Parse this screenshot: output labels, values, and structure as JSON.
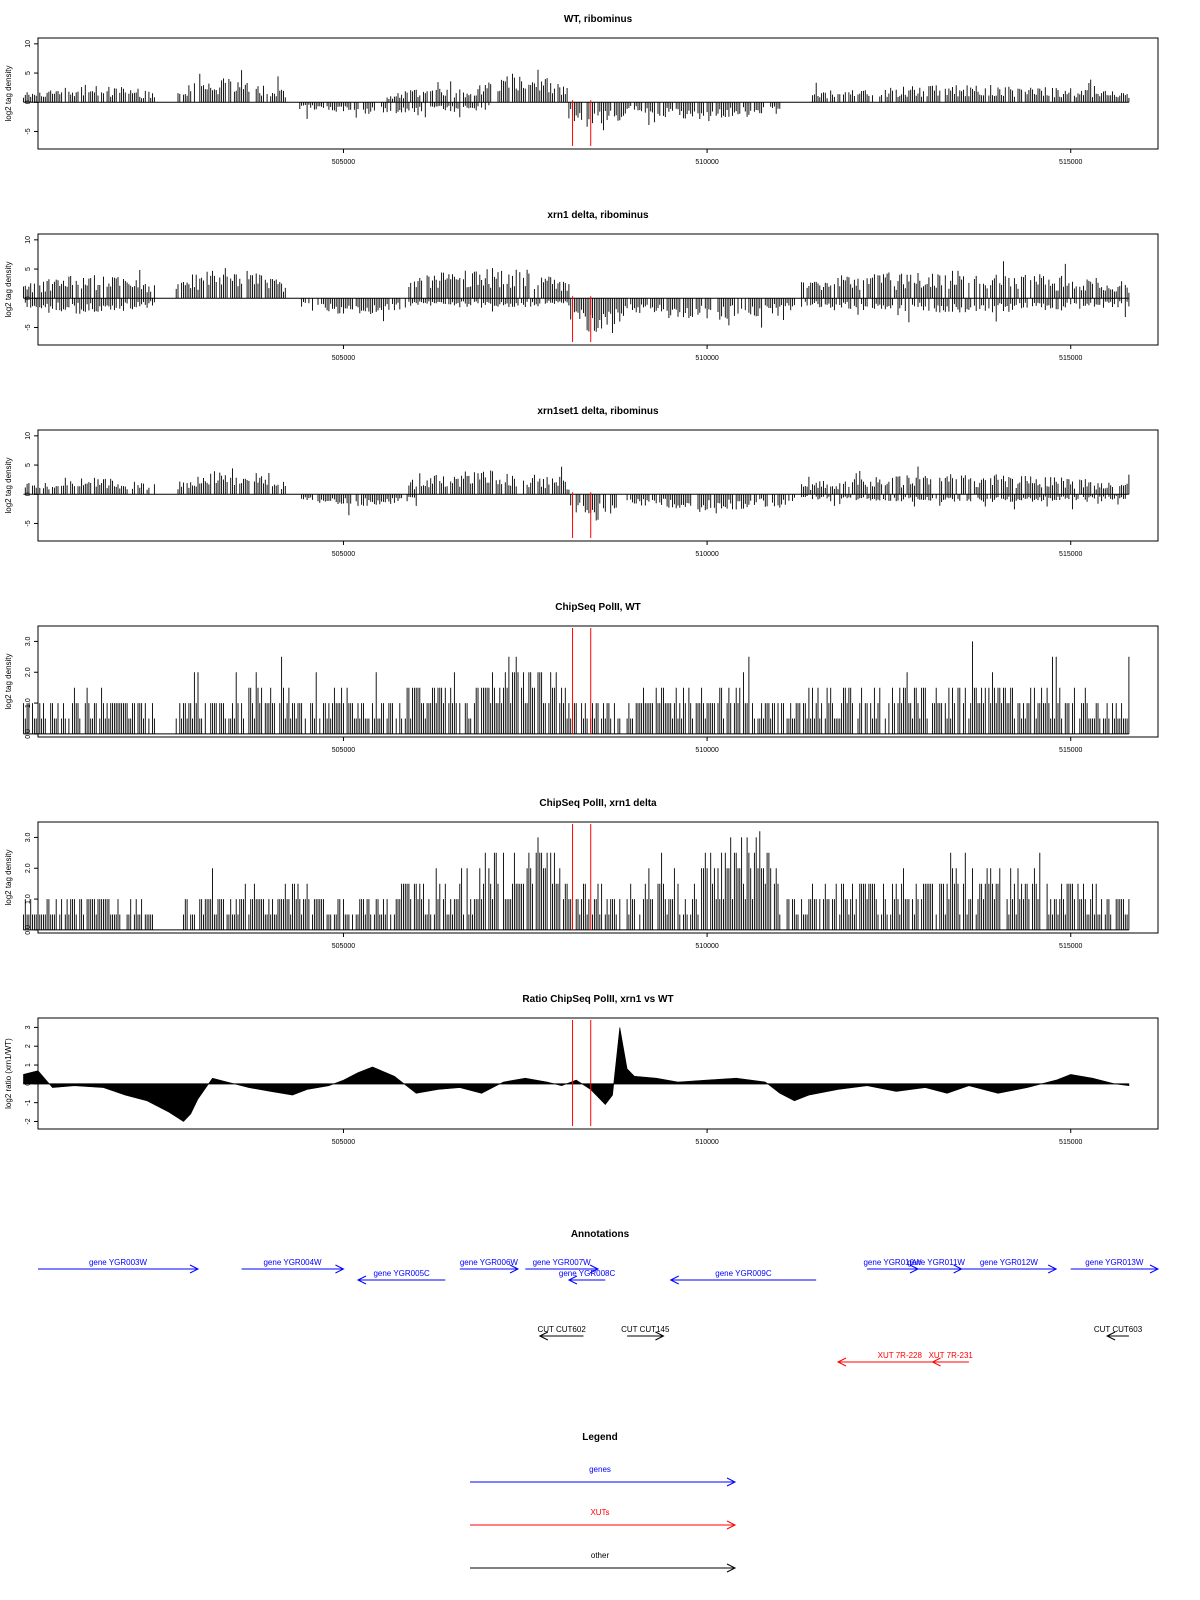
{
  "chart_data": [
    {
      "type": "bar",
      "title": "WT, ribominus",
      "xlabel": "",
      "ylabel": "log2 tag density",
      "xlim": [
        500800,
        516200
      ],
      "ylim": [
        -8,
        11
      ],
      "yticks": [
        -5,
        0,
        5,
        10
      ],
      "xticks": [
        505000,
        510000,
        515000
      ],
      "markers_x": [
        508150,
        508400
      ],
      "marker_color": "#ff0000",
      "x_range": [
        500600,
        515800
      ],
      "segments": [
        {
          "x": [
            500600,
            502400
          ],
          "dir": 1,
          "base": 2.2,
          "amp": 2.3
        },
        {
          "x": [
            502700,
            504200
          ],
          "dir": 1,
          "base": 3.0,
          "amp": 3.0
        },
        {
          "x": [
            504400,
            507000
          ],
          "dir": -1,
          "base": 1.5,
          "amp": 2.0
        },
        {
          "x": [
            505600,
            507000
          ],
          "dir": 1,
          "base": 1.8,
          "amp": 2.0
        },
        {
          "x": [
            506800,
            508100
          ],
          "dir": 1,
          "base": 3.5,
          "amp": 4.0
        },
        {
          "x": [
            508100,
            508900
          ],
          "dir": -1,
          "base": 3.5,
          "amp": 3.0
        },
        {
          "x": [
            508900,
            511000
          ],
          "dir": -1,
          "base": 2.2,
          "amp": 2.5
        },
        {
          "x": [
            511400,
            515800
          ],
          "dir": 1,
          "base": 2.2,
          "amp": 2.5
        }
      ]
    },
    {
      "type": "bar",
      "title": "xrn1 delta, ribominus",
      "xlabel": "",
      "ylabel": "log2 tag density",
      "xlim": [
        500800,
        516200
      ],
      "ylim": [
        -8,
        11
      ],
      "yticks": [
        -5,
        0,
        5,
        10
      ],
      "xticks": [
        505000,
        510000,
        515000
      ],
      "markers_x": [
        508150,
        508400
      ],
      "marker_color": "#ff0000",
      "x_range": [
        500600,
        515800
      ],
      "segments": [
        {
          "x": [
            500600,
            502400
          ],
          "dir": 1,
          "base": 3.0,
          "amp": 3.0
        },
        {
          "x": [
            500600,
            502400
          ],
          "dir": -1,
          "base": 1.8,
          "amp": 2.0
        },
        {
          "x": [
            502700,
            504200
          ],
          "dir": 1,
          "base": 3.8,
          "amp": 3.5
        },
        {
          "x": [
            504400,
            505900
          ],
          "dir": -1,
          "base": 2.2,
          "amp": 2.5
        },
        {
          "x": [
            505900,
            508100
          ],
          "dir": 1,
          "base": 4.0,
          "amp": 4.5
        },
        {
          "x": [
            505900,
            508100
          ],
          "dir": -1,
          "base": 1.2,
          "amp": 1.5
        },
        {
          "x": [
            508100,
            508900
          ],
          "dir": -1,
          "base": 4.5,
          "amp": 3.0
        },
        {
          "x": [
            508900,
            511200
          ],
          "dir": -1,
          "base": 2.8,
          "amp": 2.5
        },
        {
          "x": [
            511300,
            515800
          ],
          "dir": 1,
          "base": 3.5,
          "amp": 3.0
        },
        {
          "x": [
            511300,
            515800
          ],
          "dir": -1,
          "base": 1.8,
          "amp": 2.5
        }
      ]
    },
    {
      "type": "bar",
      "title": "xrn1set1 delta, ribominus",
      "xlabel": "",
      "ylabel": "log2 tag density",
      "xlim": [
        500800,
        516200
      ],
      "ylim": [
        -8,
        11
      ],
      "yticks": [
        -5,
        0,
        5,
        10
      ],
      "xticks": [
        505000,
        510000,
        515000
      ],
      "markers_x": [
        508150,
        508400
      ],
      "marker_color": "#ff0000",
      "x_range": [
        500600,
        515800
      ],
      "segments": [
        {
          "x": [
            500600,
            502400
          ],
          "dir": 1,
          "base": 2.2,
          "amp": 2.5
        },
        {
          "x": [
            502700,
            504200
          ],
          "dir": 1,
          "base": 3.0,
          "amp": 3.0
        },
        {
          "x": [
            504400,
            506000
          ],
          "dir": -1,
          "base": 1.5,
          "amp": 2.0
        },
        {
          "x": [
            505900,
            508100
          ],
          "dir": 1,
          "base": 3.0,
          "amp": 3.0
        },
        {
          "x": [
            508100,
            508800
          ],
          "dir": -1,
          "base": 3.2,
          "amp": 2.5
        },
        {
          "x": [
            508900,
            511200
          ],
          "dir": -1,
          "base": 2.0,
          "amp": 2.5
        },
        {
          "x": [
            511300,
            515800
          ],
          "dir": 1,
          "base": 2.5,
          "amp": 3.0
        },
        {
          "x": [
            511300,
            515800
          ],
          "dir": -1,
          "base": 1.0,
          "amp": 1.8
        }
      ]
    },
    {
      "type": "bar",
      "title": "ChipSeq PolII, WT",
      "xlabel": "",
      "ylabel": "log2 tag density",
      "xlim": [
        500800,
        516200
      ],
      "ylim": [
        -0.1,
        3.5
      ],
      "yticks": [
        0.0,
        1.0,
        2.0,
        3.0
      ],
      "ytick_labels": [
        "0.0",
        "1.0",
        "2.0",
        "3.0"
      ],
      "xticks": [
        505000,
        510000,
        515000
      ],
      "markers_x": [
        508150,
        508400
      ],
      "marker_color": "#ff0000",
      "x_range": [
        500600,
        515800
      ],
      "segments": [
        {
          "x": [
            500600,
            502400
          ],
          "dir": 1,
          "base": 1.0,
          "amp": 1.3
        },
        {
          "x": [
            502700,
            505600
          ],
          "dir": 1,
          "base": 1.1,
          "amp": 1.5
        },
        {
          "x": [
            505600,
            506800
          ],
          "dir": 1,
          "base": 1.2,
          "amp": 1.3
        },
        {
          "x": [
            506800,
            508100
          ],
          "dir": 1,
          "base": 2.0,
          "amp": 1.4
        },
        {
          "x": [
            508100,
            508800
          ],
          "dir": 1,
          "base": 1.0,
          "amp": 1.0
        },
        {
          "x": [
            508900,
            510800
          ],
          "dir": 1,
          "base": 1.3,
          "amp": 1.5
        },
        {
          "x": [
            510800,
            515800
          ],
          "dir": 1,
          "base": 1.3,
          "amp": 1.7
        }
      ]
    },
    {
      "type": "bar",
      "title": "ChipSeq PolII, xrn1 delta",
      "xlabel": "",
      "ylabel": "log2 tag density",
      "xlim": [
        500800,
        516200
      ],
      "ylim": [
        -0.1,
        3.5
      ],
      "yticks": [
        0.0,
        1.0,
        2.0,
        3.0
      ],
      "ytick_labels": [
        "0.0",
        "1.0",
        "2.0",
        "3.0"
      ],
      "xticks": [
        505000,
        510000,
        515000
      ],
      "markers_x": [
        508150,
        508400
      ],
      "marker_color": "#ff0000",
      "x_range": [
        500600,
        515800
      ],
      "segments": [
        {
          "x": [
            500600,
            502400
          ],
          "dir": 1,
          "base": 0.9,
          "amp": 1.1
        },
        {
          "x": [
            502800,
            505500
          ],
          "dir": 1,
          "base": 1.0,
          "amp": 1.2
        },
        {
          "x": [
            505500,
            506800
          ],
          "dir": 1,
          "base": 1.3,
          "amp": 1.3
        },
        {
          "x": [
            506800,
            508100
          ],
          "dir": 1,
          "base": 2.3,
          "amp": 0.9
        },
        {
          "x": [
            508100,
            508800
          ],
          "dir": 1,
          "base": 1.1,
          "amp": 0.8
        },
        {
          "x": [
            508900,
            509800
          ],
          "dir": 1,
          "base": 1.5,
          "amp": 1.0
        },
        {
          "x": [
            509800,
            511000
          ],
          "dir": 1,
          "base": 2.3,
          "amp": 1.0
        },
        {
          "x": [
            511100,
            515800
          ],
          "dir": 1,
          "base": 1.5,
          "amp": 1.4
        }
      ]
    },
    {
      "type": "area",
      "title": "Ratio ChipSeq PolII, xrn1 vs WT",
      "xlabel": "",
      "ylabel": "log2 ratio (xrn1/WT)",
      "xlim": [
        500800,
        516200
      ],
      "ylim": [
        -2.4,
        3.5
      ],
      "yticks": [
        -2,
        -1,
        0,
        1,
        2,
        3
      ],
      "xticks": [
        505000,
        510000,
        515000
      ],
      "markers_x": [
        508150,
        508400
      ],
      "marker_color": "#ff0000",
      "x": [
        500600,
        500800,
        501000,
        501300,
        501700,
        502000,
        502300,
        502600,
        502800,
        502900,
        503000,
        503200,
        503400,
        503700,
        504000,
        504300,
        504500,
        504800,
        505000,
        505200,
        505400,
        505700,
        506000,
        506300,
        506600,
        506900,
        507200,
        507500,
        507800,
        508000,
        508200,
        508400,
        508600,
        508700,
        508800,
        508900,
        509000,
        509300,
        509600,
        510000,
        510400,
        510800,
        511000,
        511200,
        511400,
        511800,
        512200,
        512600,
        513000,
        513300,
        513600,
        514000,
        514400,
        514800,
        515000,
        515300,
        515600,
        515800
      ],
      "y": [
        0.5,
        0.7,
        -0.2,
        -0.1,
        -0.2,
        -0.6,
        -0.9,
        -1.5,
        -2.0,
        -1.6,
        -0.8,
        0.3,
        0.1,
        -0.2,
        -0.4,
        -0.6,
        -0.3,
        -0.1,
        0.2,
        0.6,
        0.9,
        0.4,
        -0.5,
        -0.3,
        -0.2,
        -0.5,
        0.1,
        0.3,
        0.1,
        -0.1,
        0.2,
        -0.3,
        -1.1,
        -0.6,
        3.0,
        0.8,
        0.4,
        0.3,
        0.1,
        0.2,
        0.3,
        0.1,
        -0.5,
        -0.9,
        -0.6,
        -0.3,
        -0.1,
        -0.4,
        -0.2,
        -0.5,
        -0.1,
        -0.5,
        -0.2,
        0.2,
        0.5,
        0.3,
        0.0,
        -0.1
      ]
    }
  ],
  "annotations": {
    "title": "Annotations",
    "xlim": [
      500800,
      516200
    ],
    "items": [
      {
        "label": "gene YGR003W",
        "x1": 500800,
        "x2": 503000,
        "dir": 1,
        "lane": 1,
        "kind": "gene"
      },
      {
        "label": "gene YGR004W",
        "x1": 503600,
        "x2": 505000,
        "dir": 1,
        "lane": 1,
        "kind": "gene"
      },
      {
        "label": "gene YGR005C",
        "x1": 505200,
        "x2": 506400,
        "dir": -1,
        "lane": 2,
        "kind": "gene"
      },
      {
        "label": "gene YGR006W",
        "x1": 506600,
        "x2": 507400,
        "dir": 1,
        "lane": 1,
        "kind": "gene"
      },
      {
        "label": "gene YGR007W",
        "x1": 507500,
        "x2": 508500,
        "dir": 1,
        "lane": 1,
        "kind": "gene"
      },
      {
        "label": "gene YGR008C",
        "x1": 508100,
        "x2": 508600,
        "dir": -1,
        "lane": 2,
        "kind": "gene"
      },
      {
        "label": "gene YGR009C",
        "x1": 509500,
        "x2": 511500,
        "dir": -1,
        "lane": 2,
        "kind": "gene"
      },
      {
        "label": "gene YGR010W",
        "x1": 512200,
        "x2": 512900,
        "dir": 1,
        "lane": 1,
        "kind": "gene"
      },
      {
        "label": "gene YGR011W",
        "x1": 512800,
        "x2": 513500,
        "dir": 1,
        "lane": 1,
        "kind": "gene"
      },
      {
        "label": "gene YGR012W",
        "x1": 513500,
        "x2": 514800,
        "dir": 1,
        "lane": 1,
        "kind": "gene"
      },
      {
        "label": "gene YGR013W",
        "x1": 515000,
        "x2": 516200,
        "dir": 1,
        "lane": 1,
        "kind": "gene"
      },
      {
        "label": "CUT CUT602",
        "x1": 507700,
        "x2": 508300,
        "dir": -1,
        "lane": 3,
        "kind": "other"
      },
      {
        "label": "CUT CUT145",
        "x1": 508900,
        "x2": 509400,
        "dir": 1,
        "lane": 3,
        "kind": "other"
      },
      {
        "label": "CUT CUT603",
        "x1": 515500,
        "x2": 515800,
        "dir": -1,
        "lane": 3,
        "kind": "other"
      },
      {
        "label": "XUT 7R-228",
        "x1": 511800,
        "x2": 513500,
        "dir": -1,
        "lane": 4,
        "kind": "xut"
      },
      {
        "label": "XUT 7R-231",
        "x1": 513100,
        "x2": 513600,
        "dir": -1,
        "lane": 4,
        "kind": "xut"
      }
    ]
  },
  "legend": {
    "title": "Legend",
    "entries": [
      {
        "label": "genes",
        "color": "#0000ff"
      },
      {
        "label": "XUTs",
        "color": "#ff0000"
      },
      {
        "label": "other",
        "color": "#000000"
      }
    ]
  },
  "colors": {
    "gene": "#0000ff",
    "xut": "#ff0000",
    "other": "#000000",
    "bars": "#000000",
    "marker": "#ff0000"
  }
}
